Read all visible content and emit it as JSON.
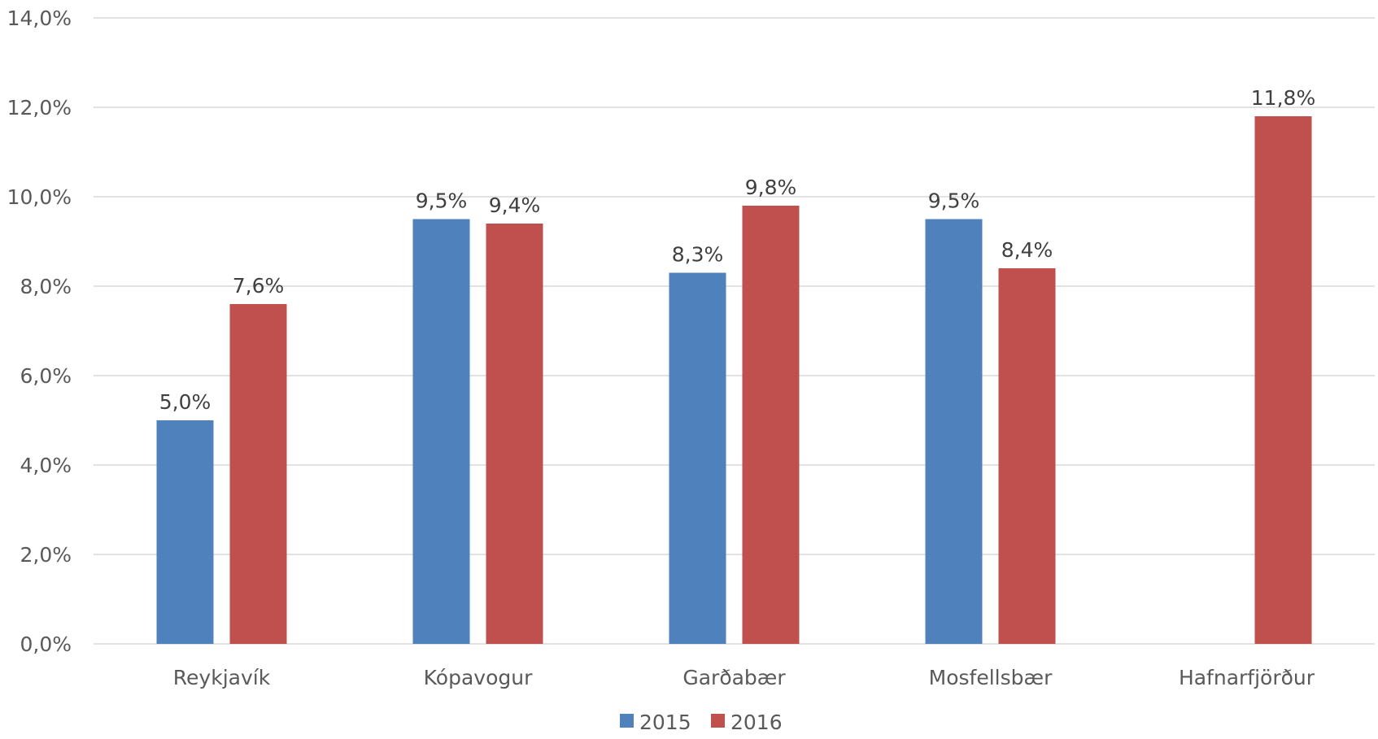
{
  "chart_data": {
    "type": "bar",
    "categories": [
      "Reykjavík",
      "Kópavogur",
      "Garðabær",
      "Mosfellsbær",
      "Hafnarfjörður"
    ],
    "series": [
      {
        "name": "2015",
        "color": "#4f81bd",
        "values": [
          5.0,
          9.5,
          8.3,
          9.5,
          null
        ],
        "labels": [
          "5,0%",
          "9,5%",
          "8,3%",
          "9,5%",
          null
        ]
      },
      {
        "name": "2016",
        "color": "#c0504d",
        "values": [
          7.6,
          9.4,
          9.8,
          8.4,
          11.8
        ],
        "labels": [
          "7,6%",
          "9,4%",
          "9,8%",
          "8,4%",
          "11,8%"
        ]
      }
    ],
    "y_ticks": [
      0,
      2,
      4,
      6,
      8,
      10,
      12,
      14
    ],
    "y_tick_labels": [
      "0,0%",
      "2,0%",
      "4,0%",
      "6,0%",
      "8,0%",
      "10,0%",
      "12,0%",
      "14,0%"
    ],
    "ylim": [
      0,
      14
    ],
    "grid": true,
    "legend": "bottom-center"
  }
}
